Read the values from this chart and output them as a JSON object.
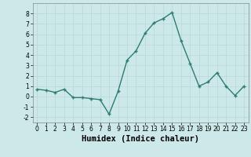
{
  "x": [
    0,
    1,
    2,
    3,
    4,
    5,
    6,
    7,
    8,
    9,
    10,
    11,
    12,
    13,
    14,
    15,
    16,
    17,
    18,
    19,
    20,
    21,
    22,
    23
  ],
  "y": [
    0.7,
    0.6,
    0.4,
    0.7,
    -0.1,
    -0.1,
    -0.2,
    -0.3,
    -1.7,
    0.5,
    3.5,
    4.4,
    6.1,
    7.1,
    7.5,
    8.1,
    5.4,
    3.2,
    1.0,
    1.4,
    2.3,
    1.0,
    0.1,
    1.0
  ],
  "line_color": "#2e7d6e",
  "marker": "+",
  "marker_size": 3,
  "linewidth": 1.0,
  "xlabel": "Humidex (Indice chaleur)",
  "xlim": [
    -0.5,
    23.5
  ],
  "ylim": [
    -2.5,
    9.0
  ],
  "yticks": [
    -2,
    -1,
    0,
    1,
    2,
    3,
    4,
    5,
    6,
    7,
    8
  ],
  "xticks": [
    0,
    1,
    2,
    3,
    4,
    5,
    6,
    7,
    8,
    9,
    10,
    11,
    12,
    13,
    14,
    15,
    16,
    17,
    18,
    19,
    20,
    21,
    22,
    23
  ],
  "bg_color": "#cce8e8",
  "grid_color": "#b8d8d8",
  "tick_fontsize": 5.5,
  "xlabel_fontsize": 7.5
}
